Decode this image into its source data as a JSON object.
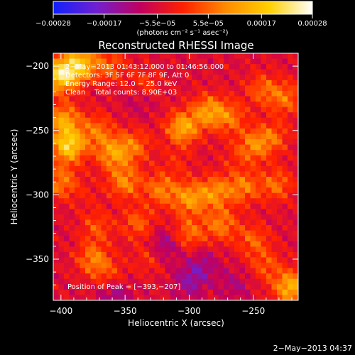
{
  "chart_data": {
    "type": "heatmap",
    "title": "Reconstructed RHESSI Image",
    "xlabel": "Heliocentric X (arcsec)",
    "ylabel": "Heliocentric Y (arcsec)",
    "xlim": [
      -406,
      -215
    ],
    "ylim": [
      -382,
      -190
    ],
    "x_ticks": [
      -400,
      -350,
      -300,
      -250
    ],
    "x_tick_labels": [
      "−400",
      "−350",
      "−300",
      "−250"
    ],
    "y_ticks": [
      -200,
      -250,
      -300,
      -350
    ],
    "y_tick_labels": [
      "−200",
      "−250",
      "−300",
      "−350"
    ],
    "colorbar": {
      "range": [
        -0.00028,
        0.00028
      ],
      "ticks": [
        -0.00028,
        -0.00017,
        -5.5e-05,
        5.5e-05,
        0.00017,
        0.00028
      ],
      "tick_labels": [
        "−0.00028",
        "−0.00017",
        "−5.5e−05",
        "5.5e−05",
        "0.00017",
        "0.00028"
      ],
      "units_label": "(photons cm⁻² s⁻¹ asec⁻²)",
      "colors": [
        "#1020ff",
        "#7020d0",
        "#c00060",
        "#ff2000",
        "#ff8c00",
        "#ffd000",
        "#ffffff"
      ]
    },
    "info_lines": [
      "2−May−2013 01:43:12.000 to 01:46:56.000",
      "Detectors: 3F 5F 6F 7F 8F 9F, Att 0",
      "Energy Range: 12.0 − 25.0 keV",
      "Clean    Total counts: 8.90E+03"
    ],
    "peak_label": "Position of Peak = [−393,−207]",
    "peak_position": [
      -393,
      -207
    ],
    "timestamp": "2−May−2013 04:37",
    "blobs": [
      {
        "x": -400,
        "y": -207,
        "v": 0.95
      },
      {
        "x": -385,
        "y": -198,
        "v": 0.75
      },
      {
        "x": -398,
        "y": -242,
        "v": 0.6
      },
      {
        "x": -394,
        "y": -262,
        "v": 0.85
      },
      {
        "x": -400,
        "y": -290,
        "v": 0.45
      },
      {
        "x": -372,
        "y": -250,
        "v": 0.4
      },
      {
        "x": -360,
        "y": -268,
        "v": 0.55
      },
      {
        "x": -343,
        "y": -262,
        "v": 0.4
      },
      {
        "x": -362,
        "y": -200,
        "v": 0.35
      },
      {
        "x": -335,
        "y": -215,
        "v": 0.3
      },
      {
        "x": -305,
        "y": -248,
        "v": 0.65
      },
      {
        "x": -285,
        "y": -235,
        "v": 0.55
      },
      {
        "x": -268,
        "y": -240,
        "v": 0.4
      },
      {
        "x": -250,
        "y": -262,
        "v": 0.45
      },
      {
        "x": -243,
        "y": -218,
        "v": 0.35
      },
      {
        "x": -225,
        "y": -225,
        "v": 0.4
      },
      {
        "x": -235,
        "y": -255,
        "v": 0.35
      },
      {
        "x": -350,
        "y": -290,
        "v": 0.5
      },
      {
        "x": -322,
        "y": -296,
        "v": 0.45
      },
      {
        "x": -300,
        "y": -303,
        "v": 0.55
      },
      {
        "x": -280,
        "y": -298,
        "v": 0.5
      },
      {
        "x": -258,
        "y": -294,
        "v": 0.45
      },
      {
        "x": -232,
        "y": -292,
        "v": 0.4
      },
      {
        "x": -372,
        "y": -325,
        "v": 0.3
      },
      {
        "x": -340,
        "y": -322,
        "v": 0.35
      },
      {
        "x": -300,
        "y": -330,
        "v": 0.4
      },
      {
        "x": -275,
        "y": -323,
        "v": 0.45
      },
      {
        "x": -250,
        "y": -335,
        "v": 0.35
      },
      {
        "x": -375,
        "y": -350,
        "v": 0.45
      },
      {
        "x": -362,
        "y": -362,
        "v": 0.25
      },
      {
        "x": -330,
        "y": -348,
        "v": 0.25
      },
      {
        "x": -221,
        "y": -372,
        "v": 0.7
      },
      {
        "x": -240,
        "y": -355,
        "v": 0.3
      },
      {
        "x": -300,
        "y": -368,
        "v": -0.3
      },
      {
        "x": -320,
        "y": -340,
        "v": -0.35
      },
      {
        "x": -358,
        "y": -378,
        "v": -0.3
      },
      {
        "x": -338,
        "y": -225,
        "v": -0.2
      },
      {
        "x": -290,
        "y": -355,
        "v": -0.25
      },
      {
        "x": -265,
        "y": -370,
        "v": -0.2
      },
      {
        "x": -380,
        "y": -300,
        "v": 0.1
      },
      {
        "x": -310,
        "y": -275,
        "v": 0.15
      },
      {
        "x": -265,
        "y": -272,
        "v": 0.12
      }
    ]
  }
}
